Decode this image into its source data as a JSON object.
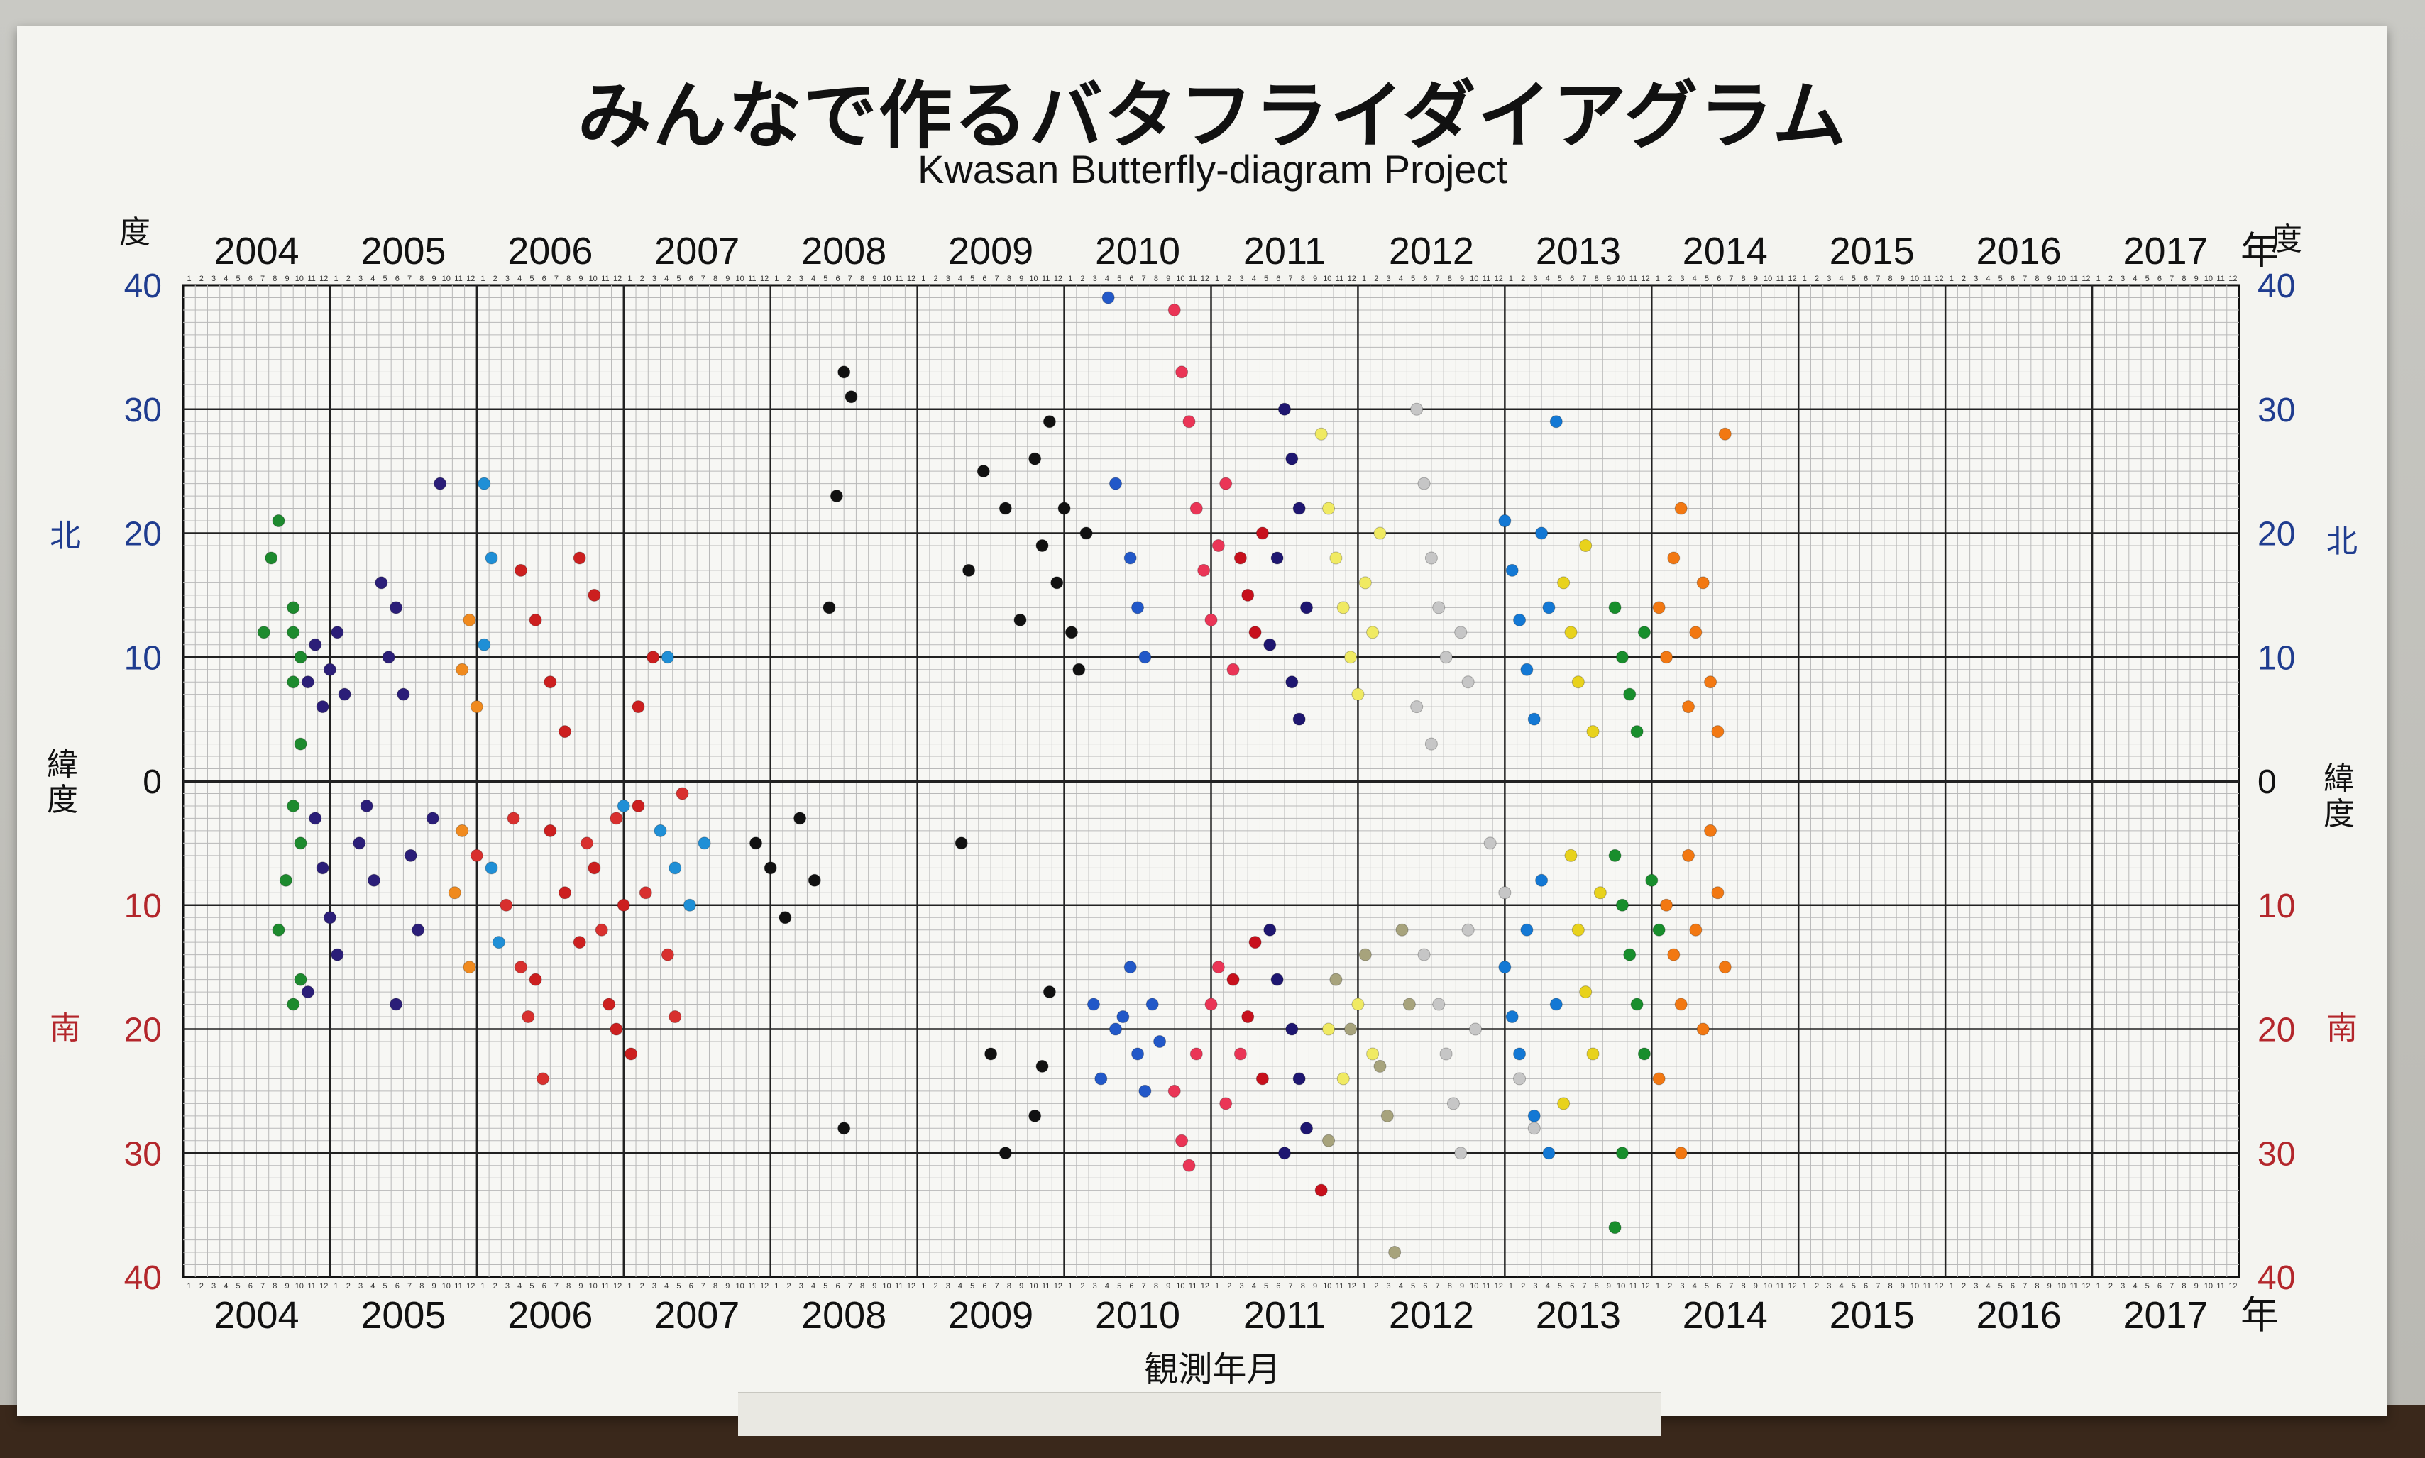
{
  "title": "みんなで作るバタフライダイアグラム",
  "subtitle": "Kwasan Butterfly-diagram Project",
  "x_axis_label": "観測年月",
  "year_unit": "年",
  "lat_unit": "度",
  "north_label": "北",
  "south_label": "南",
  "latitude_label": "緯度",
  "colors": {
    "north_axis": "#1f3c8f",
    "south_axis": "#b3262b",
    "grid": "#222222",
    "minor_grid": "#b9b9b9"
  },
  "chart_data": {
    "type": "scatter",
    "title": "みんなで作るバタフライダイアグラム",
    "subtitle": "Kwasan Butterfly-diagram Project",
    "xlabel": "観測年月",
    "ylabel": "緯度",
    "x_years": [
      "2004",
      "2005",
      "2006",
      "2007",
      "2008",
      "2009",
      "2010",
      "2011",
      "2012",
      "2013",
      "2014",
      "2015",
      "2016",
      "2017"
    ],
    "month_ticks": [
      1,
      2,
      3,
      4,
      5,
      6,
      7,
      8,
      9,
      10,
      11,
      12
    ],
    "ylim": [
      -40,
      40
    ],
    "y_major_ticks": [
      40,
      30,
      20,
      10,
      0,
      10,
      20,
      30,
      40
    ],
    "grid": true,
    "series": [
      {
        "color": "#1d8a2e",
        "points": [
          [
            2004.55,
            12
          ],
          [
            2004.6,
            18
          ],
          [
            2004.65,
            21
          ],
          [
            2004.75,
            14
          ],
          [
            2004.75,
            12
          ],
          [
            2004.8,
            10
          ],
          [
            2004.75,
            8
          ],
          [
            2004.8,
            3
          ],
          [
            2004.75,
            -2
          ],
          [
            2004.8,
            -5
          ],
          [
            2004.7,
            -8
          ],
          [
            2004.65,
            -12
          ],
          [
            2004.8,
            -16
          ],
          [
            2004.75,
            -18
          ]
        ]
      },
      {
        "color": "#2b1e78",
        "points": [
          [
            2004.85,
            8
          ],
          [
            2004.9,
            11
          ],
          [
            2004.95,
            6
          ],
          [
            2005.0,
            9
          ],
          [
            2005.05,
            12
          ],
          [
            2005.1,
            7
          ],
          [
            2004.9,
            -3
          ],
          [
            2004.95,
            -7
          ],
          [
            2005.0,
            -11
          ],
          [
            2005.05,
            -14
          ],
          [
            2004.85,
            -17
          ],
          [
            2005.2,
            -5
          ],
          [
            2005.3,
            -8
          ],
          [
            2005.25,
            -2
          ],
          [
            2005.4,
            10
          ],
          [
            2005.45,
            14
          ],
          [
            2005.5,
            7
          ],
          [
            2005.35,
            16
          ],
          [
            2005.55,
            -6
          ],
          [
            2005.6,
            -12
          ],
          [
            2005.45,
            -18
          ],
          [
            2005.75,
            24
          ],
          [
            2005.7,
            -3
          ]
        ]
      },
      {
        "color": "#f08a1e",
        "points": [
          [
            2005.9,
            9
          ],
          [
            2005.95,
            13
          ],
          [
            2006.0,
            6
          ],
          [
            2005.9,
            -4
          ],
          [
            2005.85,
            -9
          ],
          [
            2005.95,
            -15
          ]
        ]
      },
      {
        "color": "#1f8fd6",
        "points": [
          [
            2006.05,
            24
          ],
          [
            2006.1,
            18
          ],
          [
            2006.05,
            11
          ],
          [
            2006.1,
            -7
          ],
          [
            2006.15,
            -13
          ],
          [
            2007.25,
            -4
          ],
          [
            2007.35,
            -7
          ],
          [
            2007.45,
            -10
          ],
          [
            2007.55,
            -5
          ],
          [
            2007.3,
            10
          ],
          [
            2007.0,
            -2
          ]
        ]
      },
      {
        "color": "#cc1f1f",
        "points": [
          [
            2006.3,
            17
          ],
          [
            2006.4,
            13
          ],
          [
            2006.5,
            8
          ],
          [
            2006.6,
            4
          ],
          [
            2006.7,
            18
          ],
          [
            2006.8,
            15
          ],
          [
            2006.5,
            -4
          ],
          [
            2006.6,
            -9
          ],
          [
            2006.7,
            -13
          ],
          [
            2006.4,
            -16
          ],
          [
            2006.8,
            -7
          ],
          [
            2006.95,
            -20
          ],
          [
            2007.1,
            -2
          ],
          [
            2007.0,
            -10
          ],
          [
            2007.2,
            10
          ],
          [
            2007.1,
            6
          ],
          [
            2006.9,
            -18
          ],
          [
            2007.05,
            -22
          ]
        ]
      },
      {
        "color": "#d8302e",
        "points": [
          [
            2006.0,
            -6
          ],
          [
            2006.2,
            -10
          ],
          [
            2006.3,
            -15
          ],
          [
            2006.35,
            -19
          ],
          [
            2006.45,
            -24
          ],
          [
            2006.25,
            -3
          ],
          [
            2006.75,
            -5
          ],
          [
            2006.85,
            -12
          ],
          [
            2006.95,
            -3
          ],
          [
            2007.15,
            -9
          ],
          [
            2007.3,
            -14
          ],
          [
            2007.35,
            -19
          ],
          [
            2007.4,
            -1
          ]
        ]
      },
      {
        "color": "#111111",
        "points": [
          [
            2008.5,
            33
          ],
          [
            2008.55,
            31
          ],
          [
            2008.45,
            23
          ],
          [
            2008.4,
            14
          ],
          [
            2007.9,
            -5
          ],
          [
            2008.0,
            -7
          ],
          [
            2008.1,
            -11
          ],
          [
            2008.2,
            -3
          ],
          [
            2008.3,
            -8
          ],
          [
            2009.45,
            25
          ],
          [
            2009.35,
            17
          ],
          [
            2009.6,
            22
          ],
          [
            2009.7,
            13
          ],
          [
            2009.8,
            26
          ],
          [
            2009.85,
            19
          ],
          [
            2009.9,
            29
          ],
          [
            2009.95,
            16
          ],
          [
            2010.0,
            22
          ],
          [
            2010.05,
            12
          ],
          [
            2010.1,
            9
          ],
          [
            2010.15,
            20
          ],
          [
            2009.9,
            -17
          ],
          [
            2009.85,
            -23
          ],
          [
            2009.8,
            -27
          ],
          [
            2009.6,
            -30
          ],
          [
            2009.5,
            -22
          ],
          [
            2009.3,
            -5
          ],
          [
            2008.5,
            -28
          ]
        ]
      },
      {
        "color": "#2258c8",
        "points": [
          [
            2010.3,
            39
          ],
          [
            2010.35,
            24
          ],
          [
            2010.45,
            18
          ],
          [
            2010.5,
            14
          ],
          [
            2010.55,
            10
          ],
          [
            2010.4,
            -19
          ],
          [
            2010.5,
            -22
          ],
          [
            2010.55,
            -25
          ],
          [
            2010.6,
            -18
          ],
          [
            2010.45,
            -15
          ],
          [
            2010.35,
            -20
          ],
          [
            2010.65,
            -21
          ],
          [
            2010.2,
            -18
          ],
          [
            2010.25,
            -24
          ]
        ]
      },
      {
        "color": "#ea3556",
        "points": [
          [
            2010.75,
            38
          ],
          [
            2010.8,
            33
          ],
          [
            2010.85,
            29
          ],
          [
            2010.9,
            22
          ],
          [
            2010.95,
            17
          ],
          [
            2011.0,
            13
          ],
          [
            2011.05,
            19
          ],
          [
            2011.1,
            24
          ],
          [
            2011.15,
            9
          ],
          [
            2010.9,
            -22
          ],
          [
            2011.0,
            -18
          ],
          [
            2011.05,
            -15
          ],
          [
            2010.75,
            -25
          ],
          [
            2010.8,
            -29
          ],
          [
            2011.1,
            -26
          ],
          [
            2011.2,
            -22
          ],
          [
            2010.85,
            -31
          ]
        ]
      },
      {
        "color": "#1e1670",
        "points": [
          [
            2011.5,
            30
          ],
          [
            2011.55,
            26
          ],
          [
            2011.6,
            22
          ],
          [
            2011.45,
            18
          ],
          [
            2011.65,
            14
          ],
          [
            2011.4,
            11
          ],
          [
            2011.55,
            8
          ],
          [
            2011.6,
            5
          ],
          [
            2011.45,
            -16
          ],
          [
            2011.55,
            -20
          ],
          [
            2011.6,
            -24
          ],
          [
            2011.65,
            -28
          ],
          [
            2011.4,
            -12
          ],
          [
            2011.5,
            -30
          ]
        ]
      },
      {
        "color": "#c7101c",
        "points": [
          [
            2011.2,
            18
          ],
          [
            2011.25,
            15
          ],
          [
            2011.3,
            12
          ],
          [
            2011.35,
            20
          ],
          [
            2011.15,
            -16
          ],
          [
            2011.25,
            -19
          ],
          [
            2011.3,
            -13
          ],
          [
            2011.35,
            -24
          ],
          [
            2011.75,
            -33
          ]
        ]
      },
      {
        "color": "#f0ea62",
        "points": [
          [
            2011.75,
            28
          ],
          [
            2011.8,
            22
          ],
          [
            2011.85,
            18
          ],
          [
            2011.9,
            14
          ],
          [
            2011.95,
            10
          ],
          [
            2012.0,
            7
          ],
          [
            2012.05,
            16
          ],
          [
            2012.1,
            12
          ],
          [
            2012.15,
            20
          ],
          [
            2011.8,
            -20
          ],
          [
            2011.9,
            -24
          ],
          [
            2012.0,
            -18
          ],
          [
            2012.1,
            -22
          ]
        ]
      },
      {
        "color": "#a7a37c",
        "points": [
          [
            2011.85,
            -16
          ],
          [
            2011.95,
            -20
          ],
          [
            2012.05,
            -14
          ],
          [
            2012.15,
            -23
          ],
          [
            2012.2,
            -27
          ],
          [
            2011.8,
            -29
          ],
          [
            2012.3,
            -12
          ],
          [
            2012.35,
            -18
          ],
          [
            2012.25,
            -38
          ]
        ]
      },
      {
        "color": "#c6c6c6",
        "points": [
          [
            2012.4,
            30
          ],
          [
            2012.45,
            24
          ],
          [
            2012.5,
            18
          ],
          [
            2012.55,
            14
          ],
          [
            2012.6,
            10
          ],
          [
            2012.4,
            6
          ],
          [
            2012.5,
            3
          ],
          [
            2012.7,
            12
          ],
          [
            2012.75,
            8
          ],
          [
            2012.45,
            -14
          ],
          [
            2012.55,
            -18
          ],
          [
            2012.6,
            -22
          ],
          [
            2012.65,
            -26
          ],
          [
            2012.7,
            -30
          ],
          [
            2012.75,
            -12
          ],
          [
            2012.8,
            -20
          ],
          [
            2012.9,
            -5
          ],
          [
            2013.0,
            -9
          ],
          [
            2013.1,
            -24
          ],
          [
            2013.2,
            -28
          ]
        ]
      },
      {
        "color": "#1378d4",
        "points": [
          [
            2013.0,
            21
          ],
          [
            2013.05,
            17
          ],
          [
            2013.1,
            13
          ],
          [
            2013.15,
            9
          ],
          [
            2013.2,
            5
          ],
          [
            2013.25,
            20
          ],
          [
            2013.3,
            14
          ],
          [
            2013.35,
            29
          ],
          [
            2013.0,
            -15
          ],
          [
            2013.05,
            -19
          ],
          [
            2013.1,
            -22
          ],
          [
            2013.15,
            -12
          ],
          [
            2013.2,
            -27
          ],
          [
            2013.25,
            -8
          ],
          [
            2013.3,
            -30
          ],
          [
            2013.35,
            -18
          ]
        ]
      },
      {
        "color": "#e8d21c",
        "points": [
          [
            2013.4,
            16
          ],
          [
            2013.45,
            12
          ],
          [
            2013.5,
            8
          ],
          [
            2013.55,
            19
          ],
          [
            2013.6,
            4
          ],
          [
            2013.45,
            -6
          ],
          [
            2013.5,
            -12
          ],
          [
            2013.55,
            -17
          ],
          [
            2013.6,
            -22
          ],
          [
            2013.4,
            -26
          ],
          [
            2013.65,
            -9
          ]
        ]
      },
      {
        "color": "#188e2c",
        "points": [
          [
            2013.75,
            14
          ],
          [
            2013.8,
            10
          ],
          [
            2013.85,
            7
          ],
          [
            2013.9,
            4
          ],
          [
            2013.95,
            12
          ],
          [
            2013.75,
            -6
          ],
          [
            2013.8,
            -10
          ],
          [
            2013.85,
            -14
          ],
          [
            2013.9,
            -18
          ],
          [
            2013.95,
            -22
          ],
          [
            2014.0,
            -8
          ],
          [
            2014.05,
            -12
          ],
          [
            2013.8,
            -30
          ],
          [
            2013.75,
            -36
          ]
        ]
      },
      {
        "color": "#f27812",
        "points": [
          [
            2014.05,
            14
          ],
          [
            2014.1,
            10
          ],
          [
            2014.15,
            18
          ],
          [
            2014.2,
            22
          ],
          [
            2014.25,
            6
          ],
          [
            2014.3,
            12
          ],
          [
            2014.35,
            16
          ],
          [
            2014.4,
            8
          ],
          [
            2014.45,
            4
          ],
          [
            2014.5,
            28
          ],
          [
            2014.1,
            -10
          ],
          [
            2014.15,
            -14
          ],
          [
            2014.2,
            -18
          ],
          [
            2014.25,
            -6
          ],
          [
            2014.3,
            -12
          ],
          [
            2014.35,
            -20
          ],
          [
            2014.4,
            -4
          ],
          [
            2014.45,
            -9
          ],
          [
            2014.5,
            -15
          ],
          [
            2014.2,
            -30
          ],
          [
            2014.05,
            -24
          ]
        ]
      }
    ]
  }
}
